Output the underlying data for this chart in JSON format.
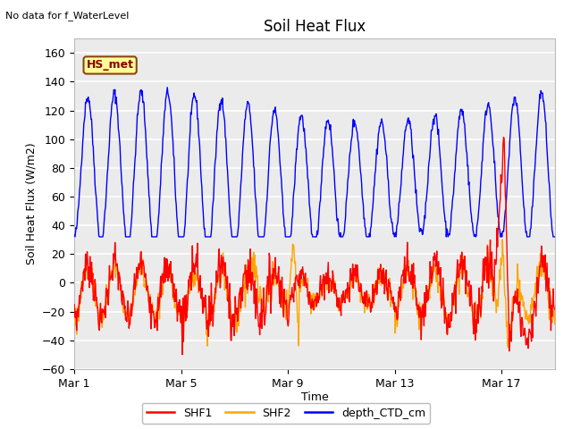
{
  "title": "Soil Heat Flux",
  "top_left_text": "No data for f_WaterLevel",
  "xlabel": "Time",
  "ylabel": "Soil Heat Flux (W/m2)",
  "ylim": [
    -60,
    170
  ],
  "yticks": [
    -60,
    -40,
    -20,
    0,
    20,
    40,
    60,
    80,
    100,
    120,
    140,
    160
  ],
  "xtick_positions": [
    0,
    4,
    8,
    12,
    16
  ],
  "xtick_labels": [
    "Mar 1",
    "Mar 5",
    "Mar 9",
    "Mar 13",
    "Mar 17"
  ],
  "xlim": [
    0,
    18
  ],
  "legend_labels": [
    "SHF1",
    "SHF2",
    "depth_CTD_cm"
  ],
  "shf1_color": "#ff0000",
  "shf2_color": "#ffa500",
  "depth_color": "#0000ff",
  "plot_bg_color": "#ebebeb",
  "fig_bg_color": "#ffffff",
  "annotation_text": "HS_met",
  "annotation_bg": "#ffff99",
  "annotation_border": "#8B4513",
  "annotation_text_color": "#8B0000",
  "grid_color": "#ffffff",
  "linewidth": 1.0
}
